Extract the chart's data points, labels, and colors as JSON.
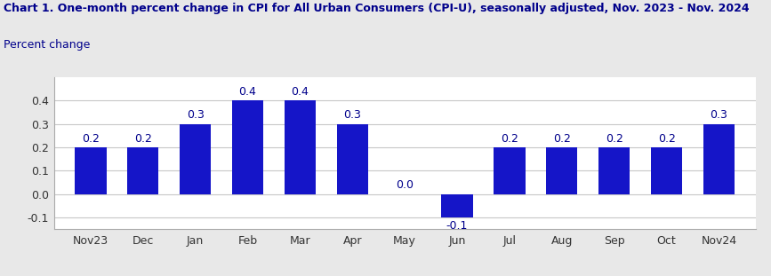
{
  "title": "Chart 1. One-month percent change in CPI for All Urban Consumers (CPI-U), seasonally adjusted, Nov. 2023 - Nov. 2024",
  "ylabel": "Percent change",
  "categories": [
    "Nov23",
    "Dec",
    "Jan",
    "Feb",
    "Mar",
    "Apr",
    "May",
    "Jun",
    "Jul",
    "Aug",
    "Sep",
    "Oct",
    "Nov24"
  ],
  "values": [
    0.2,
    0.2,
    0.3,
    0.4,
    0.4,
    0.3,
    0.0,
    -0.1,
    0.2,
    0.2,
    0.2,
    0.2,
    0.3
  ],
  "bar_color": "#1515C8",
  "bar_width": 0.6,
  "ylim": [
    -0.15,
    0.5
  ],
  "yticks": [
    -0.1,
    0.0,
    0.1,
    0.2,
    0.3,
    0.4
  ],
  "title_fontsize": 9,
  "ylabel_fontsize": 9,
  "tick_fontsize": 9,
  "label_fontsize": 9,
  "title_color": "#00008B",
  "ylabel_color": "#00008B",
  "tick_label_color": "#333333",
  "value_label_color": "#00008B",
  "background_color": "#E8E8E8",
  "plot_background_color": "#FFFFFF",
  "grid_color": "#C8C8C8"
}
